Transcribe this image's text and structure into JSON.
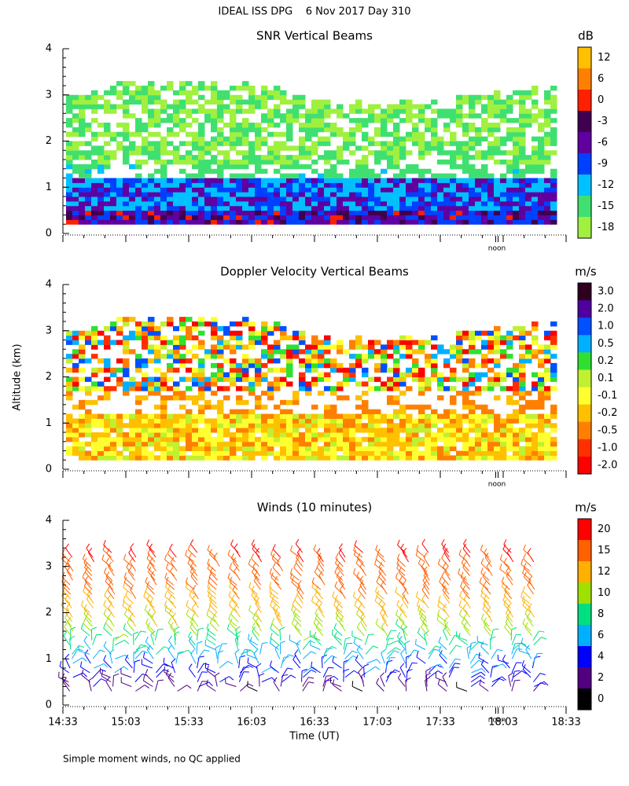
{
  "title": "IDEAL ISS DPG    6 Nov 2017 Day 310",
  "y_axis_label": "Altitude (km)",
  "x_axis_label": "Time (UT)",
  "footnote": "Simple moment winds, no QC applied",
  "chart_data": [
    {
      "type": "heatmap",
      "title": "SNR Vertical Beams",
      "ylim": [
        0,
        4
      ],
      "yticks": [
        0,
        1,
        2,
        3,
        4
      ],
      "noon_label": "noon",
      "colorbar": {
        "unit": "dB",
        "labels": [
          12,
          6,
          0,
          -3,
          -6,
          -9,
          -12,
          -15,
          -18
        ],
        "colors": [
          "#ffc000",
          "#ff8000",
          "#ff2000",
          "#400050",
          "#6000a0",
          "#0040ff",
          "#00c0ff",
          "#40e070",
          "#a0f040"
        ]
      }
    },
    {
      "type": "heatmap",
      "title": "Doppler Velocity Vertical Beams",
      "ylim": [
        0,
        4
      ],
      "yticks": [
        0,
        1,
        2,
        3,
        4
      ],
      "noon_label": "noon",
      "colorbar": {
        "unit": "m/s",
        "labels": [
          {
            "value": 3,
            "label": "3.0"
          },
          {
            "value": 2,
            "label": "2.0"
          },
          {
            "value": 1,
            "label": "1.0"
          },
          0.5,
          0.2,
          0.1,
          -0.1,
          -0.2,
          -0.5,
          {
            "value": -1,
            "label": "-1.0"
          },
          {
            "value": -2,
            "label": "-2.0"
          }
        ],
        "colors": [
          "#300020",
          "#5000a0",
          "#0050ff",
          "#00b0ff",
          "#30e030",
          "#c0f030",
          "#ffff30",
          "#ffc000",
          "#ff8000",
          "#ff3000",
          "#ff0000"
        ]
      }
    },
    {
      "type": "barbs",
      "title": "Winds (10 minutes)",
      "ylim": [
        0,
        4
      ],
      "yticks": [
        0,
        1,
        2,
        3,
        4
      ],
      "noon_label": "noon",
      "time_labels": [
        "14:33",
        "15:03",
        "15:33",
        "16:03",
        "16:33",
        "17:03",
        "17:33",
        "18:03",
        "18:33"
      ],
      "colorbar": {
        "unit": "m/s",
        "labels": [
          20,
          15,
          12,
          10,
          8,
          6,
          4,
          2,
          0
        ],
        "colors": [
          "#ff0000",
          "#ff6000",
          "#ffb000",
          "#a0e000",
          "#00e080",
          "#00b0ff",
          "#0000ff",
          "#500080",
          "#000000"
        ]
      }
    }
  ]
}
